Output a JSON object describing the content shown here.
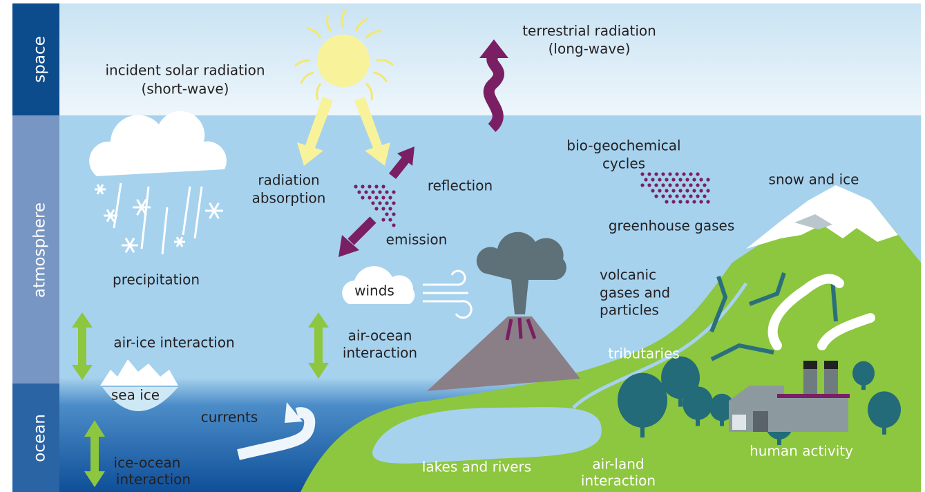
{
  "bands": [
    "space",
    "atmosphere",
    "ocean"
  ],
  "labels": {
    "incident_solar_radiation": [
      "incident solar radiation",
      "(short-wave)"
    ],
    "terrestrial_radiation": [
      "terrestrial radiation",
      "(long-wave)"
    ],
    "radiation_absorption": [
      "radiation",
      "absorption"
    ],
    "reflection": "reflection",
    "emission": "emission",
    "bio_geochemical_cycles": [
      "bio-geochemical",
      "cycles"
    ],
    "greenhouse_gases": "greenhouse gases",
    "snow_and_ice": "snow and ice",
    "precipitation": "precipitation",
    "winds": "winds",
    "volcanic": [
      "volcanic",
      "gases and",
      "particles"
    ],
    "air_ice_interaction": "air-ice interaction",
    "air_ocean_interaction": [
      "air-ocean",
      "interaction"
    ],
    "tributaries": "tributaries",
    "sea_ice": "sea ice",
    "currents": "currents",
    "ice_ocean_interaction": [
      "ice-ocean",
      "interaction"
    ],
    "lakes_and_rivers": "lakes and rivers",
    "air_land_interaction": [
      "air-land",
      "interaction"
    ],
    "human_activity": "human activity"
  }
}
